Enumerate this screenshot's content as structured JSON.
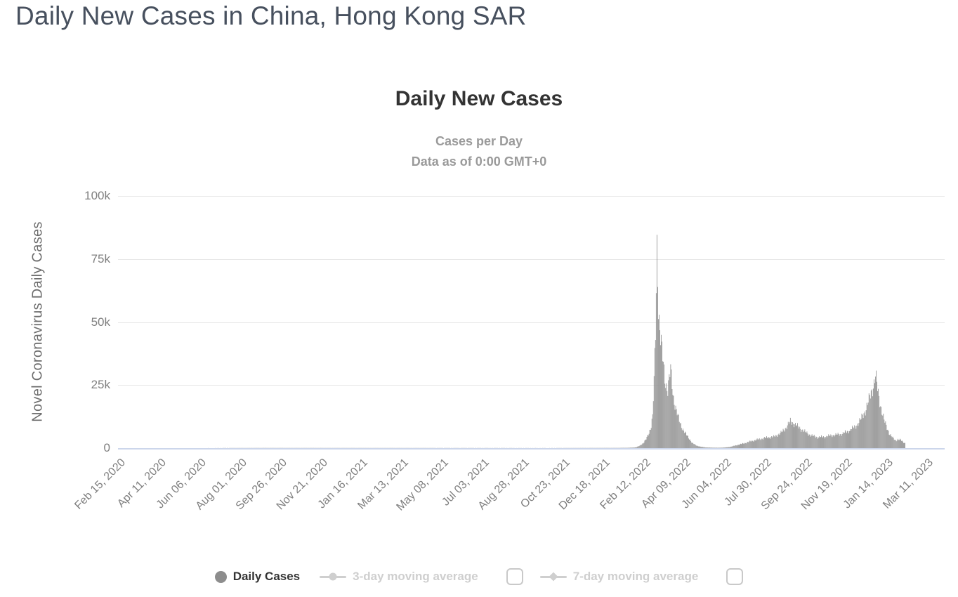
{
  "page": {
    "title": "Daily New Cases in China, Hong Kong SAR"
  },
  "chart_data": {
    "type": "bar",
    "title": "Daily New Cases",
    "subtitle1": "Cases per Day",
    "subtitle2": "Data as of 0:00 GMT+0",
    "ylabel": "Novel Coronavirus Daily Cases",
    "ylim": [
      0,
      100000
    ],
    "yticks": [
      {
        "label": "100k",
        "value": 100000
      },
      {
        "label": "75k",
        "value": 75000
      },
      {
        "label": "50k",
        "value": 50000
      },
      {
        "label": "25k",
        "value": 25000
      },
      {
        "label": "0",
        "value": 0
      }
    ],
    "xtick_labels": [
      "Feb 15, 2020",
      "Apr 11, 2020",
      "Jun 06, 2020",
      "Aug 01, 2020",
      "Sep 26, 2020",
      "Nov 21, 2020",
      "Jan 16, 2021",
      "Mar 13, 2021",
      "May 08, 2021",
      "Jul 03, 2021",
      "Aug 28, 2021",
      "Oct 23, 2021",
      "Dec 18, 2021",
      "Feb 12, 2022",
      "Apr 09, 2022",
      "Jun 04, 2022",
      "Jul 30, 2022",
      "Sep 24, 2022",
      "Nov 19, 2022",
      "Jan 14, 2023",
      "Mar 11, 2023"
    ],
    "x_axis": {
      "start_label": "Feb 15, 2020",
      "end_label": "Mar 11, 2023",
      "days_between_ticks": 56,
      "total_days": 1120
    },
    "grid": "horizontal",
    "legend_position": "bottom",
    "colors": {
      "bars": "#919191",
      "gridline": "#e7e7e7",
      "axis_line": "#ccd6eb",
      "inactive_legend": "#cfcfcf"
    },
    "series": [
      {
        "name": "Daily Cases",
        "type": "column",
        "color": "#919191",
        "values_estimated": true,
        "anchor_points_day_value": [
          [
            0,
            0
          ],
          [
            200,
            60
          ],
          [
            400,
            50
          ],
          [
            600,
            40
          ],
          [
            690,
            80
          ],
          [
            705,
            130
          ],
          [
            712,
            200
          ],
          [
            716,
            300
          ],
          [
            721,
            900
          ],
          [
            726,
            2000
          ],
          [
            730,
            3500
          ],
          [
            734,
            6000
          ],
          [
            737,
            9000
          ],
          [
            739,
            13000
          ],
          [
            741,
            26000
          ],
          [
            743,
            45000
          ],
          [
            744,
            62000
          ],
          [
            745,
            80000
          ],
          [
            746,
            71000
          ],
          [
            747,
            58000
          ],
          [
            748,
            51000
          ],
          [
            750,
            44000
          ],
          [
            752,
            38000
          ],
          [
            754,
            33000
          ],
          [
            756,
            28000
          ],
          [
            758,
            25000
          ],
          [
            760,
            23000
          ],
          [
            762,
            27000
          ],
          [
            764,
            31000
          ],
          [
            766,
            25000
          ],
          [
            768,
            20000
          ],
          [
            771,
            16000
          ],
          [
            774,
            12500
          ],
          [
            777,
            10000
          ],
          [
            781,
            7500
          ],
          [
            785,
            5500
          ],
          [
            790,
            3800
          ],
          [
            794,
            2000
          ],
          [
            800,
            1000
          ],
          [
            806,
            500
          ],
          [
            812,
            300
          ],
          [
            820,
            180
          ],
          [
            830,
            140
          ],
          [
            840,
            250
          ],
          [
            846,
            450
          ],
          [
            856,
            1200
          ],
          [
            867,
            2000
          ],
          [
            876,
            2800
          ],
          [
            886,
            3500
          ],
          [
            898,
            4200
          ],
          [
            907,
            4500
          ],
          [
            917,
            6000
          ],
          [
            925,
            8500
          ],
          [
            930,
            10600
          ],
          [
            936,
            9500
          ],
          [
            943,
            8000
          ],
          [
            950,
            6500
          ],
          [
            959,
            5000
          ],
          [
            968,
            4300
          ],
          [
            978,
            4500
          ],
          [
            990,
            5200
          ],
          [
            999,
            5500
          ],
          [
            1009,
            6500
          ],
          [
            1020,
            8500
          ],
          [
            1027,
            11000
          ],
          [
            1034,
            15000
          ],
          [
            1039,
            19000
          ],
          [
            1043,
            23000
          ],
          [
            1046,
            26000
          ],
          [
            1048,
            29000
          ],
          [
            1050,
            25000
          ],
          [
            1053,
            20000
          ],
          [
            1056,
            16000
          ],
          [
            1060,
            11000
          ],
          [
            1064,
            8000
          ],
          [
            1068,
            5500
          ],
          [
            1072,
            4000
          ],
          [
            1076,
            3000
          ],
          [
            1079,
            3500
          ],
          [
            1083,
            3200
          ],
          [
            1086,
            2500
          ],
          [
            1089,
            2000
          ]
        ]
      }
    ],
    "legend": {
      "daily_cases": "Daily Cases",
      "ma3_label": "3-day moving average",
      "ma7_label": "7-day moving average",
      "ma3_checked": false,
      "ma7_checked": false
    }
  }
}
